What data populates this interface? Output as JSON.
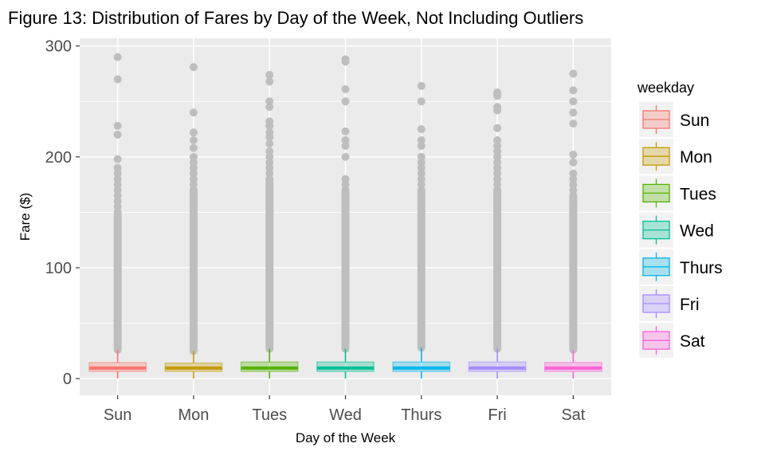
{
  "chart_data": {
    "type": "boxplot",
    "title": "Figure 13: Distribution of Fares by Day of the Week, Not Including Outliers",
    "xlabel": "Day of the Week",
    "ylabel": "Fare ($)",
    "ylim": [
      -15,
      307
    ],
    "yticks": [
      0,
      100,
      200,
      300
    ],
    "grid": true,
    "legend": {
      "title": "weekday",
      "position": "right"
    },
    "categories": [
      "Sun",
      "Mon",
      "Tues",
      "Wed",
      "Thurs",
      "Fri",
      "Sat"
    ],
    "colors": [
      "#F8766D",
      "#C49A00",
      "#53B400",
      "#00C094",
      "#00B6EB",
      "#A58AFF",
      "#FB61D7"
    ],
    "outlier_color": "#bebebe",
    "series": [
      {
        "name": "Sun",
        "q1": 6.5,
        "median": 9.5,
        "q3": 14.5,
        "whisker_low": 0,
        "whisker_high": 26,
        "outlier_band": [
          26,
          150
        ],
        "outliers": [
          290,
          270,
          228,
          220,
          198,
          190,
          185,
          180,
          175,
          170,
          165,
          160,
          155
        ]
      },
      {
        "name": "Mon",
        "q1": 6.5,
        "median": 9.5,
        "q3": 14.0,
        "whisker_low": 0,
        "whisker_high": 25,
        "outlier_band": [
          25,
          170
        ],
        "outliers": [
          281,
          240,
          222,
          215,
          208,
          200,
          195,
          190,
          185,
          180,
          175
        ]
      },
      {
        "name": "Tues",
        "q1": 6.5,
        "median": 9.5,
        "q3": 15.0,
        "whisker_low": 0,
        "whisker_high": 27,
        "outlier_band": [
          27,
          180
        ],
        "outliers": [
          274,
          268,
          250,
          245,
          232,
          228,
          222,
          218,
          212,
          205,
          200,
          195,
          190,
          185
        ]
      },
      {
        "name": "Wed",
        "q1": 6.5,
        "median": 9.5,
        "q3": 15.0,
        "whisker_low": 0,
        "whisker_high": 27,
        "outlier_band": [
          27,
          168
        ],
        "outliers": [
          288,
          286,
          261,
          250,
          223,
          215,
          210,
          200,
          180,
          175,
          170
        ]
      },
      {
        "name": "Thurs",
        "q1": 6.5,
        "median": 9.5,
        "q3": 15.0,
        "whisker_low": 0,
        "whisker_high": 28,
        "outlier_band": [
          28,
          170
        ],
        "outliers": [
          264,
          250,
          225,
          215,
          210,
          200,
          195,
          190,
          185,
          180,
          175
        ]
      },
      {
        "name": "Fri",
        "q1": 6.5,
        "median": 9.5,
        "q3": 15.0,
        "whisker_low": 0,
        "whisker_high": 27,
        "outlier_band": [
          27,
          170
        ],
        "outliers": [
          258,
          255,
          245,
          242,
          226,
          215,
          210,
          205,
          200,
          195,
          190,
          185,
          180,
          175
        ]
      },
      {
        "name": "Sat",
        "q1": 6.5,
        "median": 9.5,
        "q3": 14.5,
        "whisker_low": 0,
        "whisker_high": 26,
        "outlier_band": [
          26,
          165
        ],
        "outliers": [
          275,
          260,
          250,
          240,
          230,
          202,
          195,
          185,
          180,
          175,
          170
        ]
      }
    ]
  }
}
